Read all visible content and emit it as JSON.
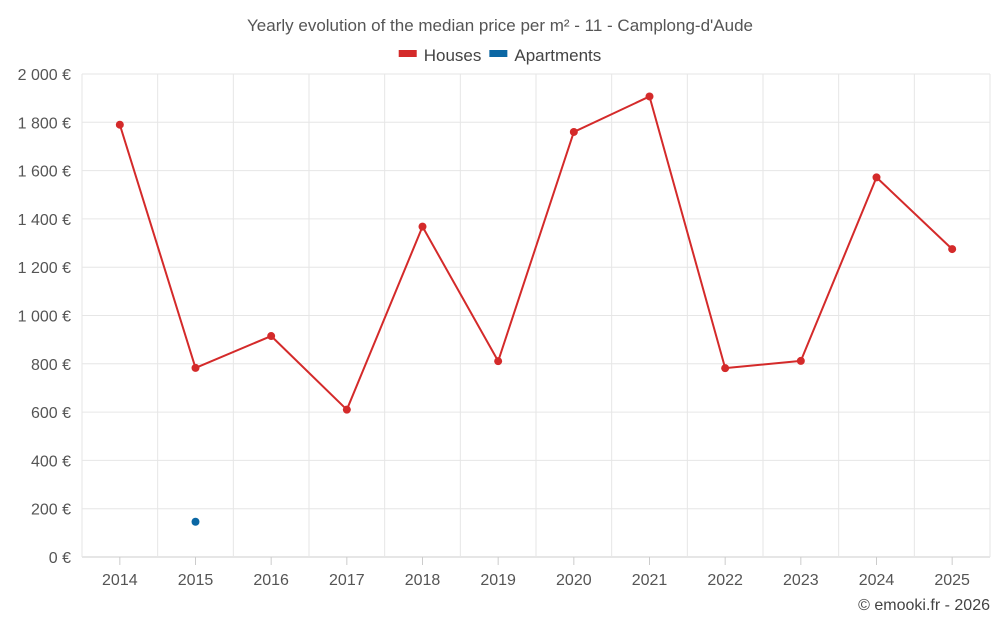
{
  "chart_data": {
    "type": "line",
    "title": "Yearly evolution of the median price per m² - 11 - Camplong-d'Aude",
    "categories": [
      "2014",
      "2015",
      "2016",
      "2017",
      "2018",
      "2019",
      "2020",
      "2021",
      "2022",
      "2023",
      "2024",
      "2025"
    ],
    "series": [
      {
        "name": "Houses",
        "color": "#d42a2a",
        "values": [
          1790,
          783,
          915,
          610,
          1368,
          811,
          1760,
          1907,
          782,
          812,
          1572,
          1275
        ]
      },
      {
        "name": "Apartments",
        "color": "#0b67a4",
        "values": [
          null,
          146,
          null,
          null,
          null,
          null,
          null,
          null,
          null,
          null,
          null,
          null
        ]
      }
    ],
    "ylim": [
      0,
      2000
    ],
    "yticks": [
      0,
      200,
      400,
      600,
      800,
      1000,
      1200,
      1400,
      1600,
      1800,
      2000
    ],
    "ytick_labels": [
      "0 €",
      "200 €",
      "400 €",
      "600 €",
      "800 €",
      "1 000 €",
      "1 200 €",
      "1 400 €",
      "1 600 €",
      "1 800 €",
      "2 000 €"
    ],
    "xlabel": "",
    "ylabel": "",
    "grid": true,
    "legend_position": "top-center"
  },
  "credit": "© emooki.fr - 2026"
}
